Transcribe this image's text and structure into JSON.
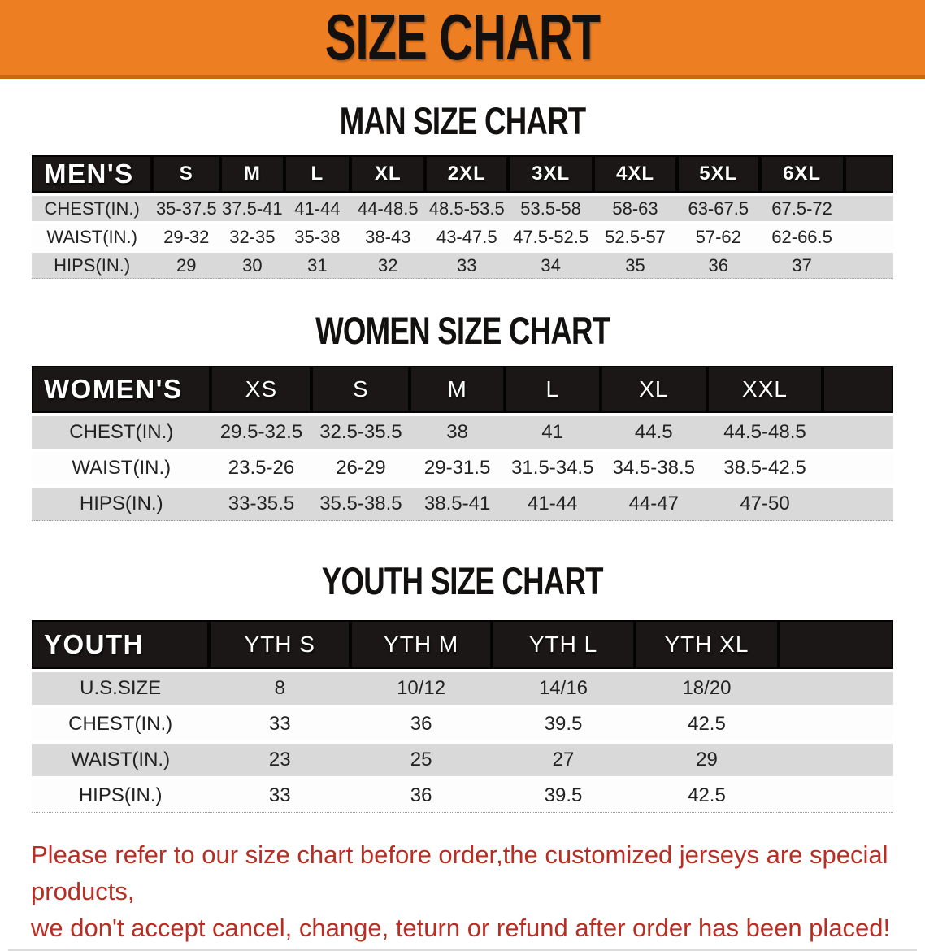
{
  "banner": {
    "title": "SIZE CHART"
  },
  "sections": [
    {
      "title": "MAN SIZE CHART",
      "header_label": "MEN'S",
      "columns": [
        "S",
        "M",
        "L",
        "XL",
        "2XL",
        "3XL",
        "4XL",
        "5XL",
        "6XL"
      ],
      "rows": [
        {
          "label": "CHEST(IN.)",
          "values": [
            "35-37.5",
            "37.5-41",
            "41-44",
            "44-48.5",
            "48.5-53.5",
            "53.5-58",
            "58-63",
            "63-67.5",
            "67.5-72"
          ]
        },
        {
          "label": "WAIST(IN.)",
          "values": [
            "29-32",
            "32-35",
            "35-38",
            "38-43",
            "43-47.5",
            "47.5-52.5",
            "52.5-57",
            "57-62",
            "62-66.5"
          ]
        },
        {
          "label": "HIPS(IN.)",
          "values": [
            "29",
            "30",
            "31",
            "32",
            "33",
            "34",
            "35",
            "36",
            "37"
          ]
        }
      ]
    },
    {
      "title": "WOMEN SIZE CHART",
      "header_label": "WOMEN'S",
      "columns": [
        "XS",
        "S",
        "M",
        "L",
        "XL",
        "XXL"
      ],
      "rows": [
        {
          "label": "CHEST(IN.)",
          "values": [
            "29.5-32.5",
            "32.5-35.5",
            "38",
            "41",
            "44.5",
            "44.5-48.5"
          ]
        },
        {
          "label": "WAIST(IN.)",
          "values": [
            "23.5-26",
            "26-29",
            "29-31.5",
            "31.5-34.5",
            "34.5-38.5",
            "38.5-42.5"
          ]
        },
        {
          "label": "HIPS(IN.)",
          "values": [
            "33-35.5",
            "35.5-38.5",
            "38.5-41",
            "41-44",
            "44-47",
            "47-50"
          ]
        }
      ]
    },
    {
      "title": "YOUTH SIZE CHART",
      "header_label": "YOUTH",
      "columns": [
        "YTH S",
        "YTH M",
        "YTH L",
        "YTH XL"
      ],
      "rows": [
        {
          "label": "U.S.SIZE",
          "values": [
            "8",
            "10/12",
            "14/16",
            "18/20"
          ]
        },
        {
          "label": "CHEST(IN.)",
          "values": [
            "33",
            "36",
            "39.5",
            "42.5"
          ]
        },
        {
          "label": "WAIST(IN.)",
          "values": [
            "23",
            "25",
            "27",
            "29"
          ]
        },
        {
          "label": "HIPS(IN.)",
          "values": [
            "33",
            "36",
            "39.5",
            "42.5"
          ]
        }
      ]
    }
  ],
  "disclaimer": {
    "line1": "Please refer to our size chart before order,the customized jerseys are special products,",
    "line2": "we don't accept cancel, change, teturn or refund after order has been placed!"
  },
  "colors": {
    "banner_orange": "#ee7e22",
    "banner_orange_dark": "#c8690f",
    "title_black": "#131110",
    "header_black": "#1b1717",
    "row_gray": "#d9d9d9",
    "row_white": "#fdfdfd",
    "disclaimer_red": "#b92d22"
  }
}
